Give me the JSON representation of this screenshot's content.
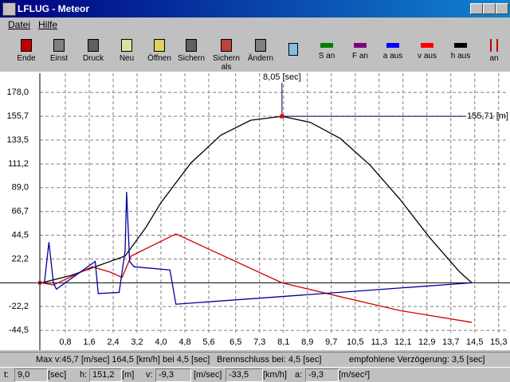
{
  "window": {
    "title": "LFLUG - Meteor"
  },
  "menu": [
    "Datei",
    "Hilfe"
  ],
  "toolbar": [
    "Ende",
    "Einst",
    "Druck",
    "Neu",
    "Öffnen",
    "Sichern",
    "Sichern als",
    "Ändern",
    "S an",
    "F an",
    "a aus",
    "v aus",
    "h aus",
    "an"
  ],
  "chart_data": {
    "type": "line",
    "xlim": [
      0,
      15.6
    ],
    "ylim": [
      -63,
      196
    ],
    "xticks": [
      {
        "value": 0.8,
        "label": "0,8"
      },
      {
        "value": 1.6,
        "label": "1,6"
      },
      {
        "value": 2.4,
        "label": "2,4"
      },
      {
        "value": 3.2,
        "label": "3,2"
      },
      {
        "value": 4.0,
        "label": "4,0"
      },
      {
        "value": 4.8,
        "label": "4,8"
      },
      {
        "value": 5.6,
        "label": "5,6"
      },
      {
        "value": 6.5,
        "label": "6,5"
      },
      {
        "value": 7.3,
        "label": "7,3"
      },
      {
        "value": 8.1,
        "label": "8,1"
      },
      {
        "value": 8.9,
        "label": "8,9"
      },
      {
        "value": 9.7,
        "label": "9,7"
      },
      {
        "value": 10.5,
        "label": "10,5"
      },
      {
        "value": 11.3,
        "label": "11,3"
      },
      {
        "value": 12.1,
        "label": "12,1"
      },
      {
        "value": 12.9,
        "label": "12,9"
      },
      {
        "value": 13.7,
        "label": "13,7"
      },
      {
        "value": 14.5,
        "label": "14,5"
      },
      {
        "value": 15.3,
        "label": "15,3"
      }
    ],
    "yticks": [
      {
        "value": 178.0,
        "label": "178,0"
      },
      {
        "value": 155.7,
        "label": "155,7"
      },
      {
        "value": 133.5,
        "label": "133,5"
      },
      {
        "value": 111.2,
        "label": "111,2"
      },
      {
        "value": 89.0,
        "label": "89,0"
      },
      {
        "value": 66.7,
        "label": "66,7"
      },
      {
        "value": 44.5,
        "label": "44,5"
      },
      {
        "value": 22.2,
        "label": "22,2"
      },
      {
        "value": -22.2,
        "label": "-22,2"
      },
      {
        "value": -44.5,
        "label": "-44,5"
      }
    ],
    "grid": true,
    "series": [
      {
        "color": "#000000",
        "x": [
          0,
          1,
          2,
          2.8,
          3.5,
          4,
          5,
          6,
          7,
          8.05,
          9,
          10,
          11,
          12,
          13,
          14,
          14.4
        ],
        "values": [
          0,
          7,
          17,
          25,
          52,
          75,
          112,
          138,
          152,
          155.71,
          150,
          135,
          110,
          78,
          42,
          10,
          0
        ]
      },
      {
        "color": "#d00000",
        "x": [
          0,
          0.4,
          1.7,
          2.3,
          2.7,
          3.0,
          4.5,
          8.05,
          10,
          12,
          14.4
        ],
        "values": [
          0,
          -2,
          15,
          10,
          5,
          25,
          45.7,
          0,
          -13,
          -26,
          -37
        ]
      },
      {
        "color": "#0000a0",
        "x": [
          0.1,
          0.25,
          0.4,
          0.5,
          1.8,
          1.9,
          2.6,
          2.8,
          2.85,
          2.95,
          3.1,
          4.3,
          4.5,
          14.4
        ],
        "values": [
          0,
          38,
          0,
          -6,
          20,
          -10,
          -9,
          30,
          85,
          20,
          15,
          12,
          -20,
          0
        ]
      }
    ],
    "annotation": {
      "x": 8.05,
      "y": 155.71,
      "x_label": "8,05 [sec]",
      "y_label": "155,71 [m]"
    }
  },
  "info": [
    "Max v:45,7 [m/sec] 164,5 [km/h] bei 4,5 [sec]",
    "Brennschluss bei: 4,5 [sec]",
    "empfohlene Verzögerung: 3,5 [sec]"
  ],
  "status": [
    "t:",
    "9,0",
    "[sec]",
    "h:",
    "151,2",
    "[m]",
    "v:",
    "-9,3",
    "[m/sec]",
    "-33,5",
    "[km/h]",
    "a:",
    "-9,3",
    "[m/sec²]"
  ]
}
